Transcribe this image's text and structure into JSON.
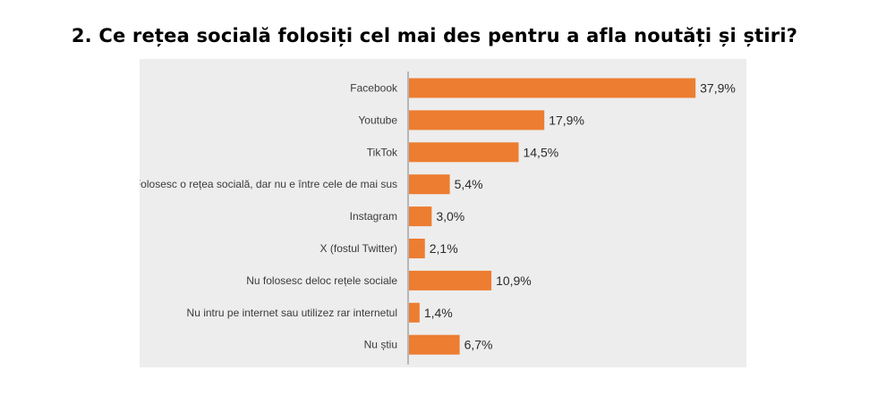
{
  "title": "2. Ce rețea socială folosiți cel mai des pentru a afla noutăți și știri?",
  "colors": {
    "bar": "#ED7D31",
    "panel": "#EDEDED",
    "axis": "#7F7F7F"
  },
  "chart_data": {
    "type": "bar",
    "orientation": "horizontal",
    "categories": [
      "Facebook",
      "Youtube",
      "TikTok",
      "Folosesc o rețea socială, dar nu e între cele de mai sus",
      "Instagram",
      "X (fostul Twitter)",
      "Nu folosesc deloc rețele sociale",
      "Nu intru pe internet sau utilizez rar internetul",
      "Nu știu"
    ],
    "values": [
      37.9,
      17.9,
      14.5,
      5.4,
      3.0,
      2.1,
      10.9,
      1.4,
      6.7
    ],
    "value_labels": [
      "37,9%",
      "17,9%",
      "14,5%",
      "5,4%",
      "3,0%",
      "2,1%",
      "10,9%",
      "1,4%",
      "6,7%"
    ],
    "xlim": [
      0,
      38
    ],
    "grid": false,
    "legend": "none"
  }
}
